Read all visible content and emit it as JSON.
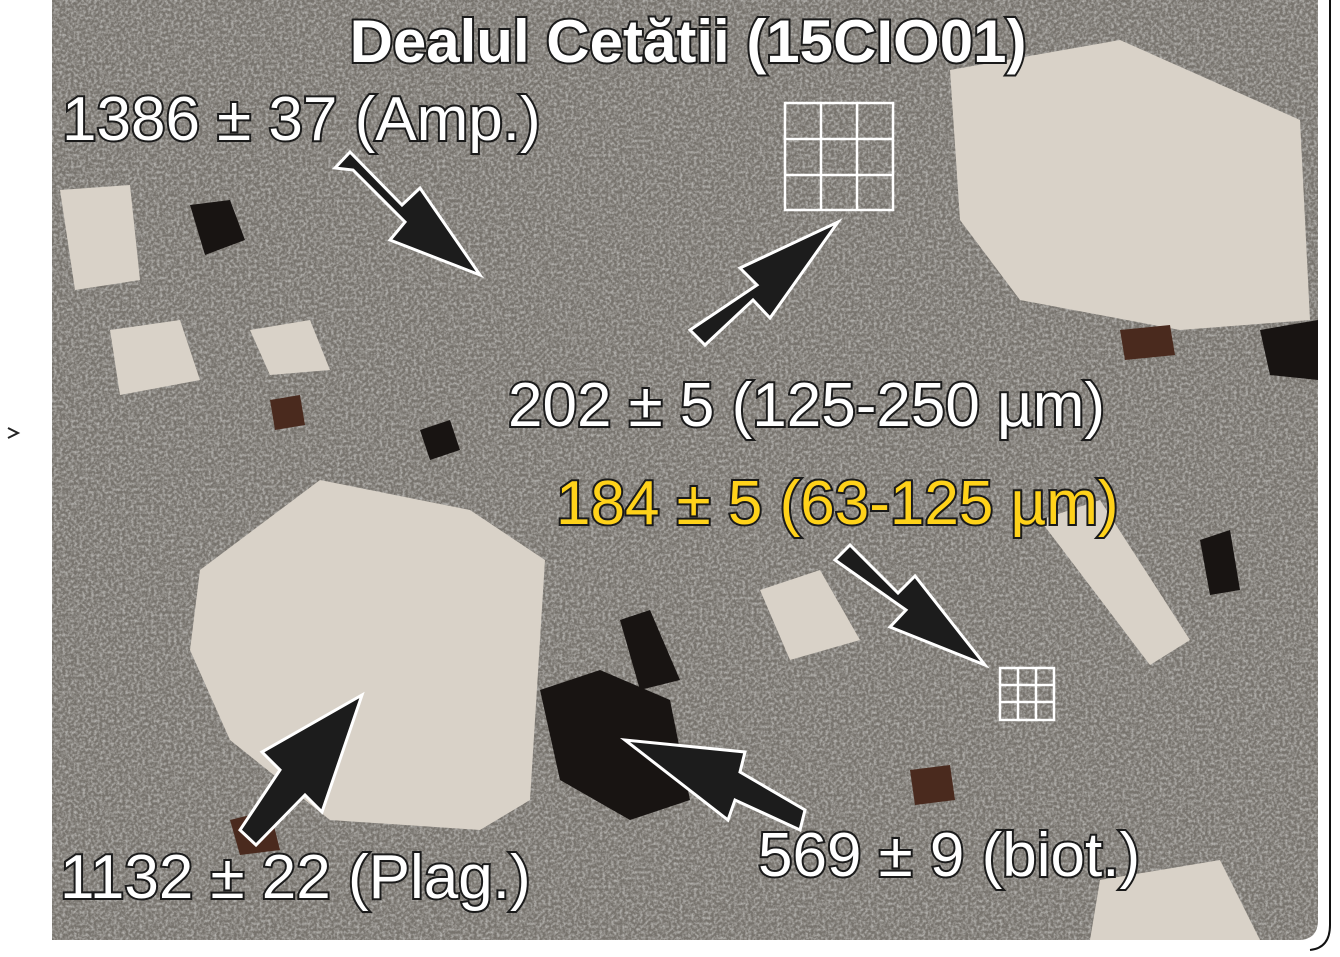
{
  "title": "Dealul Cetătii (15CIO01)",
  "labels": [
    "1386 ± 37 (Amp.)",
    "202 ± 5 (125-250 µm)",
    "184 ± 5 (63-125 µm)",
    "1132 ± 22 (Plag.)",
    "569 ± 9 (biot.)"
  ]
}
